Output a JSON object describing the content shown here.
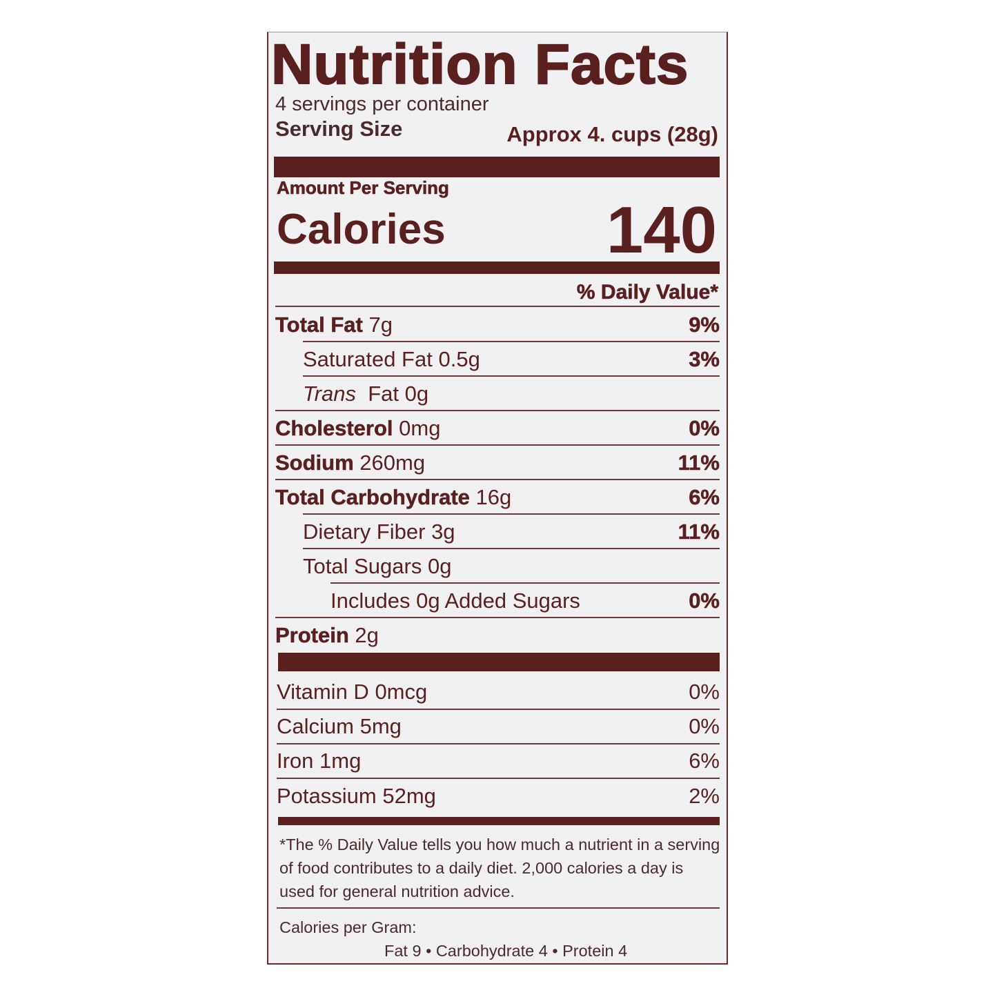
{
  "label": {
    "title": "Nutrition Facts",
    "servings_per_container": "4 servings per container",
    "serving_size_label": "Serving Size",
    "serving_size_value": "Approx 4. cups (28g)",
    "amount_per_serving": "Amount Per Serving",
    "calories_label": "Calories",
    "calories_value": "140",
    "daily_value_header": "% Daily Value*",
    "nutrients": [
      {
        "name": "Total Fat",
        "amount": "7g",
        "dv": "9%",
        "bold": true,
        "indent": 0
      },
      {
        "name": "Saturated Fat",
        "amount": "0.5g",
        "dv": "3%",
        "bold": false,
        "indent": 1
      },
      {
        "name": "Trans",
        "name_suffix": "Fat",
        "amount": "0g",
        "dv": "",
        "bold": false,
        "italic": true,
        "indent": 1
      },
      {
        "name": "Cholesterol",
        "amount": "0mg",
        "dv": "0%",
        "bold": true,
        "indent": 0
      },
      {
        "name": "Sodium",
        "amount": "260mg",
        "dv": "11%",
        "bold": true,
        "indent": 0
      },
      {
        "name": "Total Carbohydrate",
        "amount": "16g",
        "dv": "6%",
        "bold": true,
        "indent": 0
      },
      {
        "name": "Dietary Fiber",
        "amount": "3g",
        "dv": "11%",
        "bold": false,
        "indent": 1
      },
      {
        "name": "Total Sugars",
        "amount": "0g",
        "dv": "",
        "bold": false,
        "indent": 1
      },
      {
        "name": "Includes 0g Added Sugars",
        "amount": "",
        "dv": "0%",
        "bold": false,
        "indent": 2
      },
      {
        "name": "Protein",
        "amount": "2g",
        "dv": "",
        "bold": true,
        "indent": 0
      }
    ],
    "vitamins": [
      {
        "name": "Vitamin D",
        "amount": "0mcg",
        "dv": "0%"
      },
      {
        "name": "Calcium",
        "amount": "5mg",
        "dv": "0%"
      },
      {
        "name": "Iron",
        "amount": "1mg",
        "dv": "6%"
      },
      {
        "name": "Potassium",
        "amount": "52mg",
        "dv": "2%"
      }
    ],
    "footnote": "*The % Daily Value tells you how much a nutrient in a serving of food contributes to a daily diet. 2,000 calories a day is used for general nutrition advice.",
    "calories_per_gram_label": "Calories per Gram:",
    "calories_per_gram_values": "Fat 9 • Carbohydrate 4 • Protein 4"
  },
  "colors": {
    "ink": "#5a1f1f",
    "background": "#f1f1f3"
  }
}
